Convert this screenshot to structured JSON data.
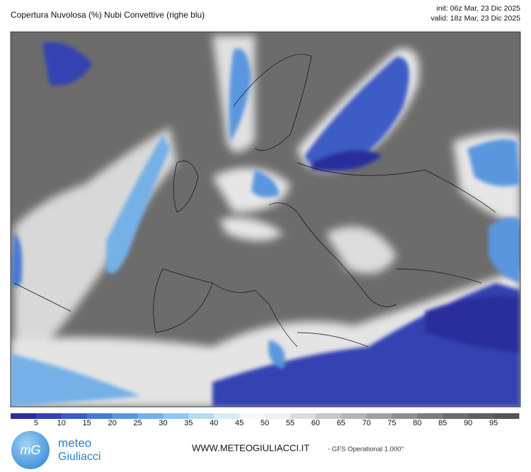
{
  "header": {
    "title": "Copertura Nuvolosa (%) Nubi Convettive (righe blu)",
    "init": "init: 06z Mar, 23 Dic 2025",
    "valid": "valid: 18z Mar, 23 Dic 2025"
  },
  "colorbar": {
    "bins": [
      0,
      5,
      10,
      15,
      20,
      25,
      30,
      35,
      40,
      45,
      50,
      55,
      60,
      65,
      70,
      75,
      80,
      85,
      90,
      95,
      100
    ],
    "colors": [
      "#2b2f9c",
      "#3442b2",
      "#3c5cc6",
      "#4a79d4",
      "#5a96de",
      "#74b0e7",
      "#93c7ef",
      "#b5dbf5",
      "#d6ecf8",
      "#f3f9fc",
      "#f0f0f0",
      "#dcdcdc",
      "#c8c8c8",
      "#b4b4b4",
      "#a0a0a0",
      "#8e8e8e",
      "#7c7c7c",
      "#6c6c6c",
      "#606060",
      "#555555"
    ],
    "ticks": [
      5,
      10,
      15,
      20,
      25,
      30,
      35,
      40,
      45,
      50,
      55,
      60,
      65,
      70,
      75,
      80,
      85,
      90,
      95
    ]
  },
  "footer": {
    "logo": "mG",
    "brand1": "meteo",
    "brand2": "Giuliacci",
    "site": "WWW.METEOGIULIACCI.IT",
    "model": "- GFS Operational 1.000°"
  }
}
